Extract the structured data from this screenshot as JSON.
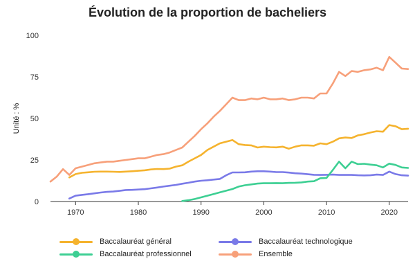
{
  "chart_data": {
    "type": "line",
    "title": "Évolution de la proportion de bacheliers",
    "ylabel": "Unité : %",
    "xlabel": "",
    "xlim": [
      1966,
      2023
    ],
    "ylim": [
      0,
      100
    ],
    "x_ticks": [
      1970,
      1980,
      1990,
      2000,
      2010,
      2020
    ],
    "y_ticks": [
      0,
      25,
      50,
      75,
      100
    ],
    "grid": "none",
    "legend_position": "bottom",
    "series": [
      {
        "name": "Baccalauréat général",
        "color": "#f5b32e",
        "points": [
          [
            1969,
            14.5
          ],
          [
            1970,
            16.5
          ],
          [
            1971,
            17.3
          ],
          [
            1972,
            17.6
          ],
          [
            1973,
            17.9
          ],
          [
            1974,
            18
          ],
          [
            1975,
            18
          ],
          [
            1976,
            17.9
          ],
          [
            1977,
            17.8
          ],
          [
            1978,
            18
          ],
          [
            1979,
            18.2
          ],
          [
            1980,
            18.5
          ],
          [
            1981,
            18.8
          ],
          [
            1982,
            19.3
          ],
          [
            1983,
            19.6
          ],
          [
            1984,
            19.5
          ],
          [
            1985,
            19.8
          ],
          [
            1986,
            21
          ],
          [
            1987,
            21.8
          ],
          [
            1988,
            24
          ],
          [
            1989,
            26
          ],
          [
            1990,
            28
          ],
          [
            1991,
            31
          ],
          [
            1992,
            33
          ],
          [
            1993,
            35
          ],
          [
            1994,
            36
          ],
          [
            1995,
            37
          ],
          [
            1996,
            34.5
          ],
          [
            1997,
            34
          ],
          [
            1998,
            33.8
          ],
          [
            1999,
            32.5
          ],
          [
            2000,
            33
          ],
          [
            2001,
            32.7
          ],
          [
            2002,
            32.6
          ],
          [
            2003,
            33
          ],
          [
            2004,
            31.8
          ],
          [
            2005,
            33
          ],
          [
            2006,
            33.8
          ],
          [
            2007,
            33.8
          ],
          [
            2008,
            33.6
          ],
          [
            2009,
            35
          ],
          [
            2010,
            34.5
          ],
          [
            2011,
            36
          ],
          [
            2012,
            38
          ],
          [
            2013,
            38.5
          ],
          [
            2014,
            38.2
          ],
          [
            2015,
            39.8
          ],
          [
            2016,
            40.5
          ],
          [
            2017,
            41.5
          ],
          [
            2018,
            42.3
          ],
          [
            2019,
            42
          ],
          [
            2020,
            46
          ],
          [
            2021,
            45.3
          ],
          [
            2022,
            43.5
          ],
          [
            2023,
            43.8
          ]
        ]
      },
      {
        "name": "Baccalauréat technologique",
        "color": "#7a7ae8",
        "points": [
          [
            1969,
            1.8
          ],
          [
            1970,
            3.5
          ],
          [
            1971,
            4
          ],
          [
            1972,
            4.4
          ],
          [
            1973,
            4.9
          ],
          [
            1974,
            5.4
          ],
          [
            1975,
            5.8
          ],
          [
            1976,
            6
          ],
          [
            1977,
            6.4
          ],
          [
            1978,
            6.9
          ],
          [
            1979,
            7
          ],
          [
            1980,
            7.2
          ],
          [
            1981,
            7.4
          ],
          [
            1982,
            7.9
          ],
          [
            1983,
            8.4
          ],
          [
            1984,
            9
          ],
          [
            1985,
            9.5
          ],
          [
            1986,
            10
          ],
          [
            1987,
            10.7
          ],
          [
            1988,
            11.3
          ],
          [
            1989,
            12
          ],
          [
            1990,
            12.5
          ],
          [
            1991,
            12.8
          ],
          [
            1992,
            13.2
          ],
          [
            1993,
            13.6
          ],
          [
            1994,
            15.8
          ],
          [
            1995,
            17.5
          ],
          [
            1996,
            17.5
          ],
          [
            1997,
            17.6
          ],
          [
            1998,
            18
          ],
          [
            1999,
            18.2
          ],
          [
            2000,
            18.2
          ],
          [
            2001,
            18
          ],
          [
            2002,
            17.7
          ],
          [
            2003,
            17.7
          ],
          [
            2004,
            17.4
          ],
          [
            2005,
            17
          ],
          [
            2006,
            16.8
          ],
          [
            2007,
            16.4
          ],
          [
            2008,
            16.1
          ],
          [
            2009,
            16
          ],
          [
            2010,
            16.1
          ],
          [
            2011,
            16.2
          ],
          [
            2012,
            16
          ],
          [
            2013,
            16
          ],
          [
            2014,
            16
          ],
          [
            2015,
            15.8
          ],
          [
            2016,
            15.7
          ],
          [
            2017,
            15.8
          ],
          [
            2018,
            16.2
          ],
          [
            2019,
            16
          ],
          [
            2020,
            18
          ],
          [
            2021,
            16.5
          ],
          [
            2022,
            15.8
          ],
          [
            2023,
            15.6
          ]
        ]
      },
      {
        "name": "Baccalauréat professionnel",
        "color": "#3dcf93",
        "points": [
          [
            1987,
            0.3
          ],
          [
            1988,
            0.8
          ],
          [
            1989,
            1.5
          ],
          [
            1990,
            2.5
          ],
          [
            1991,
            3.5
          ],
          [
            1992,
            4.5
          ],
          [
            1993,
            5.5
          ],
          [
            1994,
            6.5
          ],
          [
            1995,
            7.5
          ],
          [
            1996,
            9
          ],
          [
            1997,
            9.8
          ],
          [
            1998,
            10.3
          ],
          [
            1999,
            10.8
          ],
          [
            2000,
            11
          ],
          [
            2001,
            11
          ],
          [
            2002,
            11.1
          ],
          [
            2003,
            11
          ],
          [
            2004,
            11.2
          ],
          [
            2005,
            11.3
          ],
          [
            2006,
            11.5
          ],
          [
            2007,
            12
          ],
          [
            2008,
            12.2
          ],
          [
            2009,
            14
          ],
          [
            2010,
            14.2
          ],
          [
            2011,
            19
          ],
          [
            2012,
            24
          ],
          [
            2013,
            20
          ],
          [
            2014,
            24
          ],
          [
            2015,
            22.5
          ],
          [
            2016,
            22.7
          ],
          [
            2017,
            22.2
          ],
          [
            2018,
            21.8
          ],
          [
            2019,
            20.5
          ],
          [
            2020,
            22.8
          ],
          [
            2021,
            22
          ],
          [
            2022,
            20.5
          ],
          [
            2023,
            20.2
          ]
        ]
      },
      {
        "name": "Ensemble",
        "color": "#f7a07a",
        "points": [
          [
            1966,
            12
          ],
          [
            1967,
            15
          ],
          [
            1968,
            19.5
          ],
          [
            1969,
            16
          ],
          [
            1970,
            20
          ],
          [
            1971,
            21
          ],
          [
            1972,
            22
          ],
          [
            1973,
            23
          ],
          [
            1974,
            23.5
          ],
          [
            1975,
            24
          ],
          [
            1976,
            24
          ],
          [
            1977,
            24.5
          ],
          [
            1978,
            25
          ],
          [
            1979,
            25.5
          ],
          [
            1980,
            26
          ],
          [
            1981,
            26
          ],
          [
            1982,
            27
          ],
          [
            1983,
            28
          ],
          [
            1984,
            28.5
          ],
          [
            1985,
            29.5
          ],
          [
            1986,
            31
          ],
          [
            1987,
            32.5
          ],
          [
            1988,
            36
          ],
          [
            1989,
            39.5
          ],
          [
            1990,
            43.5
          ],
          [
            1991,
            47
          ],
          [
            1992,
            51
          ],
          [
            1993,
            54.5
          ],
          [
            1994,
            58.5
          ],
          [
            1995,
            62.5
          ],
          [
            1996,
            61
          ],
          [
            1997,
            61
          ],
          [
            1998,
            62
          ],
          [
            1999,
            61.5
          ],
          [
            2000,
            62.5
          ],
          [
            2001,
            61.5
          ],
          [
            2002,
            61.5
          ],
          [
            2003,
            62
          ],
          [
            2004,
            61
          ],
          [
            2005,
            61.5
          ],
          [
            2006,
            62.5
          ],
          [
            2007,
            62.5
          ],
          [
            2008,
            62
          ],
          [
            2009,
            65
          ],
          [
            2010,
            65
          ],
          [
            2011,
            71
          ],
          [
            2012,
            78
          ],
          [
            2013,
            75.5
          ],
          [
            2014,
            78.5
          ],
          [
            2015,
            78
          ],
          [
            2016,
            79
          ],
          [
            2017,
            79.5
          ],
          [
            2018,
            80.5
          ],
          [
            2019,
            79
          ],
          [
            2020,
            87
          ],
          [
            2021,
            83.5
          ],
          [
            2022,
            80
          ],
          [
            2023,
            79.7
          ]
        ]
      }
    ]
  }
}
